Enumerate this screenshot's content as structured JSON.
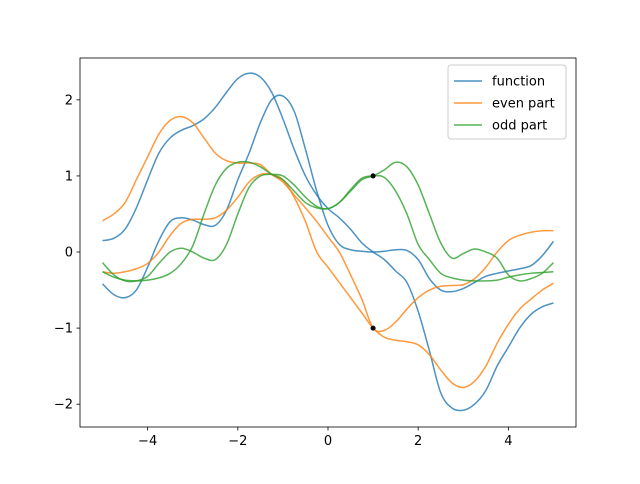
{
  "chart_data": {
    "type": "line",
    "title": "",
    "xlabel": "",
    "ylabel": "",
    "xlim": [
      -5.5,
      5.5
    ],
    "ylim": [
      -2.3,
      2.55
    ],
    "x_ticks": [
      -4,
      -2,
      0,
      2,
      4
    ],
    "y_ticks": [
      -2,
      -1,
      0,
      1,
      2
    ],
    "x_tick_labels": [
      "−4",
      "−2",
      "0",
      "2",
      "4"
    ],
    "y_tick_labels": [
      "−2",
      "−1",
      "0",
      "1",
      "2"
    ],
    "grid": false,
    "legend": {
      "position": "top-right",
      "entries": [
        {
          "label": "function",
          "color": "#1f77b4"
        },
        {
          "label": "even part",
          "color": "#ff7f0e"
        },
        {
          "label": "odd part",
          "color": "#2ca02c"
        }
      ]
    },
    "series": [
      {
        "name": "function",
        "color": "#1f77b4",
        "curves": [
          {
            "x": [
              -5,
              -4.75,
              -4.5,
              -4.25,
              -4,
              -3.75,
              -3.5,
              -3.25,
              -3,
              -2.75,
              -2.5,
              -2.25,
              -2,
              -1.75,
              -1.5,
              -1.25,
              -1,
              -0.75,
              -0.5,
              -0.25,
              0,
              0.25,
              0.5,
              0.75,
              1,
              1.25,
              1.5,
              1.75,
              2,
              2.25,
              2.5,
              2.75,
              3,
              3.25,
              3.5,
              3.75,
              4,
              4.25,
              4.5,
              4.75,
              5
            ],
            "y": [
              0.15,
              0.18,
              0.3,
              0.58,
              0.95,
              1.3,
              1.5,
              1.6,
              1.66,
              1.75,
              1.9,
              2.1,
              2.28,
              2.35,
              2.3,
              2.1,
              1.75,
              1.35,
              1.0,
              0.75,
              0.57,
              0.45,
              0.3,
              0.12,
              0.0,
              -0.1,
              -0.25,
              -0.4,
              -0.78,
              -1.3,
              -1.85,
              -2.05,
              -2.08,
              -2.0,
              -1.82,
              -1.5,
              -1.25,
              -1.0,
              -0.82,
              -0.72,
              -0.67
            ]
          },
          {
            "x": [
              -5,
              -4.75,
              -4.5,
              -4.25,
              -4,
              -3.75,
              -3.5,
              -3.25,
              -3,
              -2.75,
              -2.5,
              -2.25,
              -2,
              -1.75,
              -1.5,
              -1.25,
              -1,
              -0.75,
              -0.5,
              -0.25,
              0,
              0.25,
              0.5,
              0.75,
              1,
              1.25,
              1.5,
              1.75,
              2,
              2.25,
              2.5,
              2.75,
              3,
              3.25,
              3.5,
              3.75,
              4,
              4.25,
              4.5,
              4.75,
              5
            ],
            "y": [
              -0.42,
              -0.56,
              -0.6,
              -0.5,
              -0.2,
              0.15,
              0.4,
              0.45,
              0.42,
              0.36,
              0.35,
              0.55,
              0.95,
              1.3,
              1.7,
              2.0,
              2.05,
              1.85,
              1.35,
              0.8,
              0.35,
              0.1,
              0.03,
              0.01,
              0.0,
              0.01,
              0.03,
              0.02,
              -0.1,
              -0.35,
              -0.5,
              -0.52,
              -0.48,
              -0.4,
              -0.32,
              -0.28,
              -0.25,
              -0.22,
              -0.18,
              -0.05,
              0.14
            ]
          }
        ]
      },
      {
        "name": "even part",
        "color": "#ff7f0e",
        "curves": [
          {
            "x": [
              -5,
              -4.75,
              -4.5,
              -4.25,
              -4,
              -3.75,
              -3.5,
              -3.25,
              -3,
              -2.75,
              -2.5,
              -2.25,
              -2,
              -1.75,
              -1.5,
              -1.25,
              -1,
              -0.75,
              -0.5,
              -0.25,
              0,
              0.25,
              0.5,
              0.75,
              1,
              1.25,
              1.5,
              1.75,
              2,
              2.25,
              2.5,
              2.75,
              3,
              3.25,
              3.5,
              3.75,
              4,
              4.25,
              4.5,
              4.75,
              5
            ],
            "y": [
              0.41,
              0.5,
              0.65,
              0.95,
              1.25,
              1.55,
              1.73,
              1.78,
              1.7,
              1.5,
              1.3,
              1.2,
              1.17,
              1.17,
              1.15,
              1.02,
              0.92,
              0.75,
              0.58,
              0.4,
              0.2,
              0.0,
              -0.3,
              -0.62,
              -1.0,
              -1.03,
              -0.92,
              -0.75,
              -0.6,
              -0.5,
              -0.45,
              -0.44,
              -0.43,
              -0.35,
              -0.2,
              0.0,
              0.15,
              0.22,
              0.26,
              0.28,
              0.28
            ]
          },
          {
            "x": [
              -5,
              -4.75,
              -4.5,
              -4.25,
              -4,
              -3.75,
              -3.5,
              -3.25,
              -3,
              -2.75,
              -2.5,
              -2.25,
              -2,
              -1.75,
              -1.5,
              -1.25,
              -1,
              -0.75,
              -0.5,
              -0.25,
              0,
              0.25,
              0.5,
              0.75,
              1,
              1.25,
              1.5,
              1.75,
              2,
              2.25,
              2.5,
              2.75,
              3,
              3.25,
              3.5,
              3.75,
              4,
              4.25,
              4.5,
              4.75,
              5
            ],
            "y": [
              -0.26,
              -0.28,
              -0.26,
              -0.22,
              -0.15,
              0.0,
              0.22,
              0.38,
              0.43,
              0.43,
              0.45,
              0.55,
              0.72,
              0.92,
              1.02,
              1.02,
              0.95,
              0.72,
              0.4,
              0.0,
              -0.2,
              -0.4,
              -0.6,
              -0.8,
              -1.0,
              -1.12,
              -1.16,
              -1.18,
              -1.22,
              -1.35,
              -1.55,
              -1.72,
              -1.78,
              -1.7,
              -1.5,
              -1.2,
              -0.95,
              -0.75,
              -0.62,
              -0.5,
              -0.41
            ]
          }
        ]
      },
      {
        "name": "odd part",
        "color": "#2ca02c",
        "curves": [
          {
            "x": [
              -5,
              -4.75,
              -4.5,
              -4.25,
              -4,
              -3.75,
              -3.5,
              -3.25,
              -3,
              -2.75,
              -2.5,
              -2.25,
              -2,
              -1.75,
              -1.5,
              -1.25,
              -1,
              -0.75,
              -0.5,
              -0.25,
              0,
              0.25,
              0.5,
              0.75,
              1,
              1.25,
              1.5,
              1.75,
              2,
              2.25,
              2.5,
              2.75,
              3,
              3.25,
              3.5,
              3.75,
              4,
              4.25,
              4.5,
              4.75,
              5
            ],
            "y": [
              -0.14,
              -0.3,
              -0.38,
              -0.38,
              -0.32,
              -0.15,
              0.0,
              0.05,
              0.0,
              -0.08,
              -0.1,
              0.1,
              0.5,
              0.85,
              1.0,
              1.02,
              1.0,
              0.88,
              0.72,
              0.6,
              0.57,
              0.65,
              0.8,
              0.95,
              1.0,
              1.08,
              1.18,
              1.12,
              0.88,
              0.5,
              0.12,
              -0.08,
              -0.02,
              0.04,
              0.0,
              -0.08,
              -0.3,
              -0.38,
              -0.35,
              -0.28,
              -0.14
            ]
          },
          {
            "x": [
              -5,
              -4.75,
              -4.5,
              -4.25,
              -4,
              -3.75,
              -3.5,
              -3.25,
              -3,
              -2.75,
              -2.5,
              -2.25,
              -2,
              -1.75,
              -1.5,
              -1.25,
              -1,
              -0.75,
              -0.5,
              -0.25,
              0,
              0.25,
              0.5,
              0.75,
              1,
              1.25,
              1.5,
              1.75,
              2,
              2.25,
              2.5,
              2.75,
              3,
              3.25,
              3.5,
              3.75,
              4,
              4.25,
              4.5,
              4.75,
              5
            ],
            "y": [
              -0.26,
              -0.33,
              -0.37,
              -0.38,
              -0.37,
              -0.34,
              -0.28,
              -0.15,
              0.08,
              0.5,
              0.88,
              1.1,
              1.18,
              1.18,
              1.12,
              1.02,
              0.95,
              0.8,
              0.65,
              0.58,
              0.57,
              0.65,
              0.82,
              0.97,
              1.0,
              0.98,
              0.8,
              0.5,
              0.1,
              -0.1,
              -0.28,
              -0.34,
              -0.37,
              -0.38,
              -0.38,
              -0.37,
              -0.33,
              -0.3,
              -0.28,
              -0.27,
              -0.26
            ]
          }
        ]
      }
    ],
    "points": [
      {
        "x": 1,
        "y": 1,
        "color": "#000000"
      },
      {
        "x": 1,
        "y": -1,
        "color": "#000000"
      }
    ]
  }
}
